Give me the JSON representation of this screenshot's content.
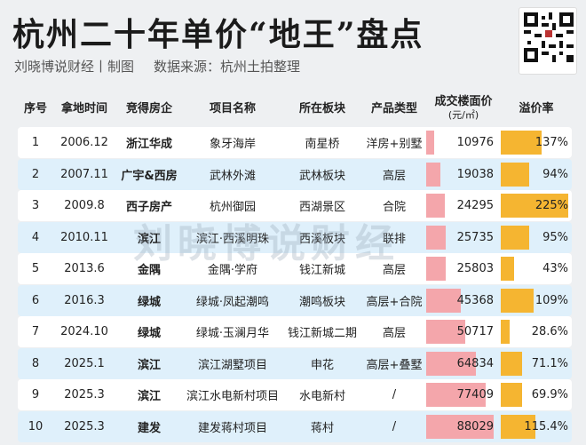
{
  "header": {
    "title": "杭州二十年单价“地王”盘点",
    "author": "刘晓博说财经丨制图",
    "source": "数据来源：杭州土拍整理"
  },
  "watermark": "刘晓博说财经",
  "columns": {
    "no": "序号",
    "date": "拿地时间",
    "developer": "竞得房企",
    "project": "项目名称",
    "area": "所在板块",
    "type": "产品类型",
    "price": "成交楼面价",
    "price_unit": "(元/㎡)",
    "premium": "溢价率"
  },
  "colors": {
    "odd_row": "#dff0fb",
    "even_row": "#ffffff",
    "price_bar": "#f4a6ab",
    "premium_bar": "#f5b531"
  },
  "scales": {
    "price_max": 88029,
    "premium_max": 225
  },
  "rows": [
    {
      "no": "1",
      "date": "2006.12",
      "developer": "浙江华成",
      "project": "象牙海岸",
      "area": "南星桥",
      "type": "洋房+别墅",
      "price": "10976",
      "premium": "137%",
      "price_value": 10976,
      "premium_value": 137
    },
    {
      "no": "2",
      "date": "2007.11",
      "developer": "广宇&西房",
      "project": "武林外滩",
      "area": "武林板块",
      "type": "高层",
      "price": "19038",
      "premium": "94%",
      "price_value": 19038,
      "premium_value": 94
    },
    {
      "no": "3",
      "date": "2009.8",
      "developer": "西子房产",
      "project": "杭州御园",
      "area": "西湖景区",
      "type": "合院",
      "price": "24295",
      "premium": "225%",
      "price_value": 24295,
      "premium_value": 225
    },
    {
      "no": "4",
      "date": "2010.11",
      "developer": "滨江",
      "project": "滨江·西溪明珠",
      "area": "西溪板块",
      "type": "联排",
      "price": "25735",
      "premium": "95%",
      "price_value": 25735,
      "premium_value": 95
    },
    {
      "no": "5",
      "date": "2013.6",
      "developer": "金隅",
      "project": "金隅·学府",
      "area": "钱江新城",
      "type": "高层",
      "price": "25803",
      "premium": "43%",
      "price_value": 25803,
      "premium_value": 43
    },
    {
      "no": "6",
      "date": "2016.3",
      "developer": "绿城",
      "project": "绿城·凤起潮鸣",
      "area": "潮鸣板块",
      "type": "高层+合院",
      "price": "45368",
      "premium": "109%",
      "price_value": 45368,
      "premium_value": 109
    },
    {
      "no": "7",
      "date": "2024.10",
      "developer": "绿城",
      "project": "绿城·玉澜月华",
      "area": "钱江新城二期",
      "type": "高层",
      "price": "50717",
      "premium": "28.6%",
      "price_value": 50717,
      "premium_value": 28.6
    },
    {
      "no": "8",
      "date": "2025.1",
      "developer": "滨江",
      "project": "滨江湖墅项目",
      "area": "申花",
      "type": "高层+叠墅",
      "price": "64834",
      "premium": "71.1%",
      "price_value": 64834,
      "premium_value": 71.1
    },
    {
      "no": "9",
      "date": "2025.3",
      "developer": "滨江",
      "project": "滨江水电新村项目",
      "area": "水电新村",
      "type": "/",
      "price": "77409",
      "premium": "69.9%",
      "price_value": 77409,
      "premium_value": 69.9
    },
    {
      "no": "10",
      "date": "2025.3",
      "developer": "建发",
      "project": "建发蒋村项目",
      "area": "蒋村",
      "type": "/",
      "price": "88029",
      "premium": "115.4%",
      "price_value": 88029,
      "premium_value": 115.4
    }
  ]
}
